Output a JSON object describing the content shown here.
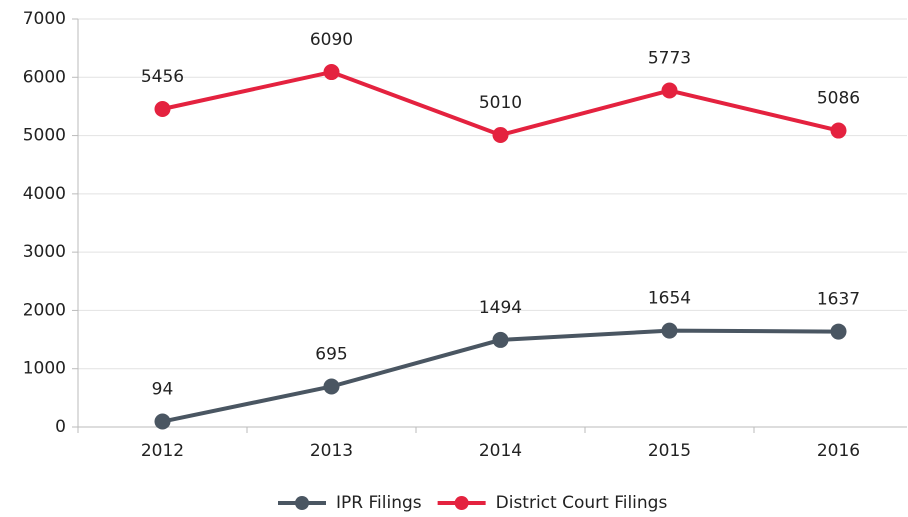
{
  "chart_data": {
    "type": "line",
    "categories": [
      "2012",
      "2013",
      "2014",
      "2015",
      "2016"
    ],
    "series": [
      {
        "name": "IPR Filings",
        "color": "#4a5662",
        "values": [
          94,
          695,
          1494,
          1654,
          1637
        ]
      },
      {
        "name": "District Court Filings",
        "color": "#e4223f",
        "values": [
          5456,
          6090,
          5010,
          5773,
          5086
        ]
      }
    ],
    "ylim": [
      0,
      7000
    ],
    "yticks": [
      0,
      1000,
      2000,
      3000,
      4000,
      5000,
      6000,
      7000
    ],
    "grid": true,
    "legend": "bottom"
  }
}
